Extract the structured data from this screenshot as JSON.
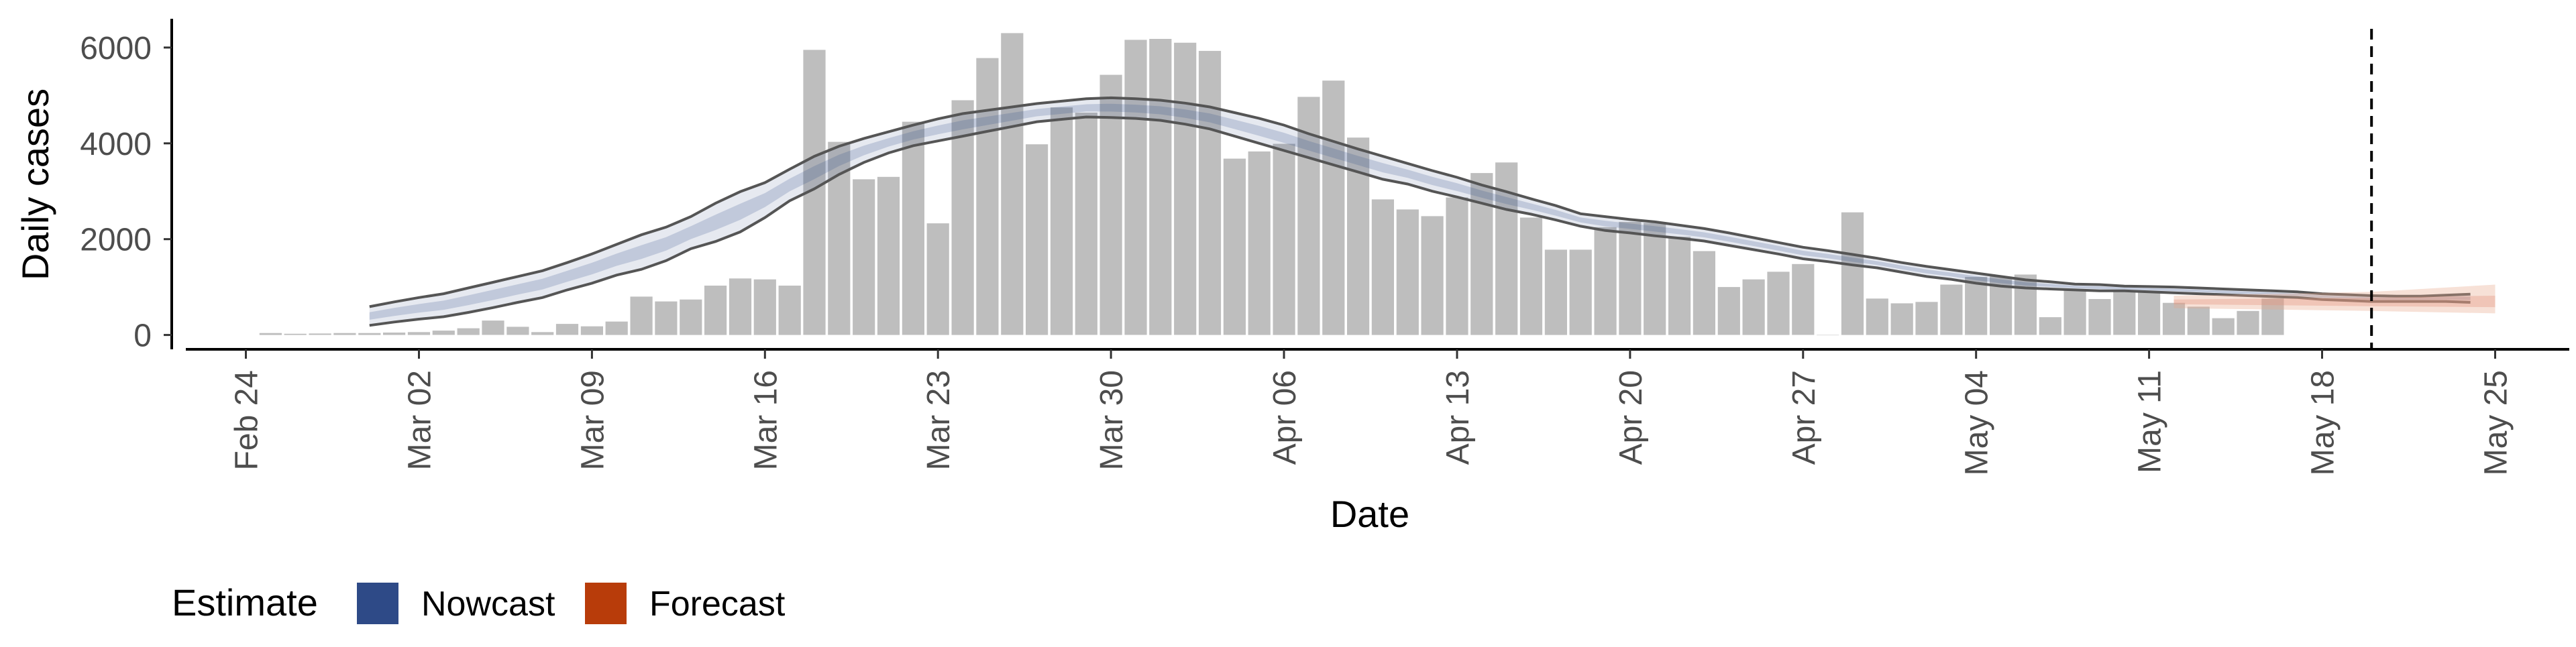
{
  "chart_data": {
    "type": "bar",
    "xlabel": "Date",
    "ylabel": "Daily cases",
    "ylim": [
      -300,
      6600
    ],
    "yticks": [
      0,
      2000,
      4000,
      6000
    ],
    "x_date_range": [
      "2020-02-21",
      "2020-05-28"
    ],
    "xticks": [
      {
        "date": "2020-02-24",
        "label": "Feb 24"
      },
      {
        "date": "2020-03-02",
        "label": "Mar 02"
      },
      {
        "date": "2020-03-09",
        "label": "Mar 09"
      },
      {
        "date": "2020-03-16",
        "label": "Mar 16"
      },
      {
        "date": "2020-03-23",
        "label": "Mar 23"
      },
      {
        "date": "2020-03-30",
        "label": "Mar 30"
      },
      {
        "date": "2020-04-06",
        "label": "Apr 06"
      },
      {
        "date": "2020-04-13",
        "label": "Apr 13"
      },
      {
        "date": "2020-04-20",
        "label": "Apr 20"
      },
      {
        "date": "2020-04-27",
        "label": "Apr 27"
      },
      {
        "date": "2020-05-04",
        "label": "May 04"
      },
      {
        "date": "2020-05-11",
        "label": "May 11"
      },
      {
        "date": "2020-05-18",
        "label": "May 18"
      },
      {
        "date": "2020-05-25",
        "label": "May 25"
      }
    ],
    "bars_start_date": "2020-02-25",
    "bar_values": [
      40,
      25,
      30,
      40,
      40,
      50,
      60,
      90,
      140,
      300,
      170,
      60,
      230,
      180,
      280,
      800,
      700,
      740,
      1030,
      1180,
      1160,
      1030,
      5950,
      4030,
      3250,
      3300,
      4450,
      2330,
      4900,
      5780,
      6300,
      3980,
      4750,
      4640,
      5430,
      6160,
      6180,
      6100,
      5930,
      3680,
      3830,
      3990,
      4970,
      5310,
      4120,
      2830,
      2620,
      2480,
      2870,
      3380,
      3600,
      2450,
      1780,
      1780,
      2250,
      2360,
      2340,
      2050,
      1750,
      1000,
      1160,
      1320,
      1480,
      0,
      2560,
      760,
      660,
      690,
      1050,
      1210,
      1220,
      1260,
      370,
      940,
      750,
      930,
      900,
      670,
      590,
      350,
      500,
      760
    ],
    "vline_date": "2020-05-20",
    "legend": {
      "title": "Estimate",
      "items": [
        {
          "label": "Nowcast",
          "color": "#2e4a87"
        },
        {
          "label": "Forecast",
          "color": "#b83c0a"
        }
      ]
    },
    "nowcast": {
      "start_date": "2020-02-29",
      "step_days": 1,
      "lower": [
        200,
        270,
        330,
        380,
        470,
        570,
        680,
        780,
        940,
        1080,
        1250,
        1370,
        1550,
        1800,
        1950,
        2150,
        2450,
        2800,
        3050,
        3350,
        3600,
        3800,
        3950,
        4050,
        4150,
        4250,
        4350,
        4450,
        4500,
        4550,
        4540,
        4520,
        4480,
        4400,
        4300,
        4150,
        4000,
        3850,
        3700,
        3550,
        3400,
        3250,
        3150,
        3000,
        2880,
        2750,
        2620,
        2520,
        2400,
        2270,
        2180,
        2130,
        2070,
        2020,
        1960,
        1870,
        1780,
        1690,
        1590,
        1530,
        1460,
        1400,
        1310,
        1220,
        1160,
        1080,
        1020,
        980,
        960,
        940,
        920,
        920,
        900,
        880,
        860,
        840,
        820,
        800,
        780,
        740,
        720,
        700,
        700,
        700,
        700,
        680
      ],
      "upper": [
        590,
        690,
        780,
        860,
        980,
        1100,
        1220,
        1340,
        1510,
        1690,
        1890,
        2090,
        2250,
        2470,
        2750,
        2990,
        3180,
        3460,
        3730,
        3940,
        4100,
        4240,
        4380,
        4510,
        4620,
        4690,
        4760,
        4830,
        4880,
        4930,
        4950,
        4930,
        4900,
        4840,
        4760,
        4640,
        4520,
        4380,
        4200,
        4040,
        3880,
        3730,
        3580,
        3430,
        3290,
        3130,
        2990,
        2840,
        2700,
        2530,
        2470,
        2410,
        2360,
        2290,
        2220,
        2130,
        2030,
        1930,
        1830,
        1760,
        1680,
        1600,
        1510,
        1430,
        1360,
        1290,
        1220,
        1150,
        1110,
        1060,
        1050,
        1020,
        1010,
        1000,
        980,
        960,
        940,
        920,
        900,
        860,
        840,
        820,
        810,
        810,
        830,
        850
      ]
    },
    "forecast": {
      "dates": [
        "2020-05-12",
        "2020-05-20",
        "2020-05-25"
      ],
      "lower": [
        560,
        500,
        450
      ],
      "mid_low": [
        640,
        600,
        580
      ],
      "mid_high": [
        740,
        780,
        820
      ],
      "upper": [
        820,
        900,
        1050
      ]
    }
  }
}
